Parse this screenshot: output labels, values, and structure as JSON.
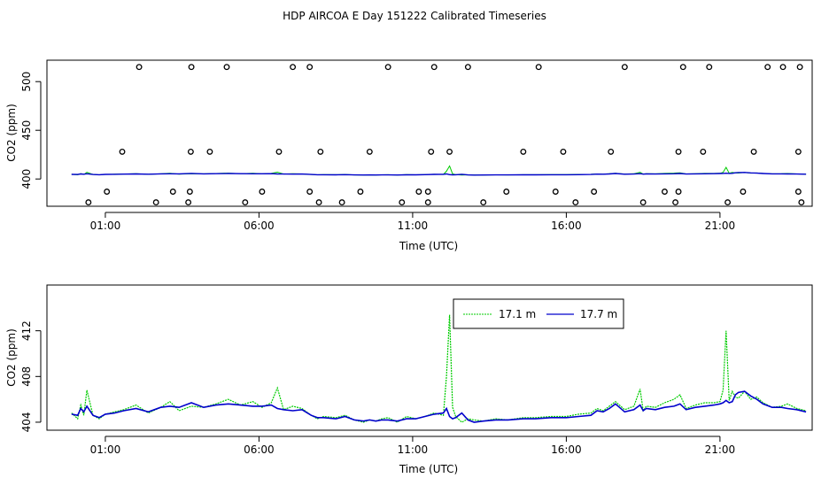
{
  "chart_data": [
    {
      "type": "scatter",
      "title": "HDP AIRCOA E  Day 151222  Calibrated Timeseries",
      "xlabel": "Time (UTC)",
      "ylabel": "CO2 (ppm)",
      "xlim": [
        -0.9,
        24.0
      ],
      "ylim": [
        372,
        522
      ],
      "x_ticks": [
        1,
        6,
        11,
        16,
        21
      ],
      "x_tick_labels": [
        "01:00",
        "06:00",
        "11:00",
        "16:00",
        "21:00"
      ],
      "y_ticks": [
        400,
        450,
        500
      ],
      "y_tick_labels": [
        "400",
        "450",
        "500"
      ],
      "grid": false,
      "colors": {
        "s17_1": "#00cc00",
        "s17_7": "#0000cc",
        "marker": "#000000"
      },
      "markers_x": [
        0.45,
        1.05,
        1.55,
        2.1,
        2.65,
        3.2,
        3.7,
        3.75,
        3.78,
        3.8,
        4.4,
        4.95,
        5.55,
        6.1,
        6.65,
        7.1,
        7.65,
        7.65,
        7.95,
        8.0,
        8.7,
        9.3,
        9.6,
        10.2,
        10.65,
        11.2,
        11.5,
        11.5,
        11.6,
        11.7,
        12.2,
        12.8,
        13.3,
        14.05,
        14.6,
        15.1,
        15.65,
        15.9,
        16.3,
        16.9,
        17.45,
        17.9,
        18.5,
        19.2,
        19.55,
        19.65,
        19.65,
        19.8,
        20.45,
        20.65,
        21.25,
        21.75,
        22.1,
        22.55,
        23.05,
        23.55,
        23.55,
        23.6,
        23.65
      ],
      "markers_y": [
        376,
        387,
        428,
        515,
        376,
        387,
        376,
        387,
        428,
        515,
        428,
        515,
        376,
        387,
        428,
        515,
        387,
        515,
        376,
        428,
        376,
        387,
        428,
        515,
        376,
        387,
        376,
        387,
        428,
        515,
        428,
        515,
        376,
        387,
        428,
        515,
        387,
        428,
        376,
        387,
        428,
        515,
        376,
        387,
        376,
        387,
        428,
        515,
        428,
        515,
        376,
        387,
        428,
        515,
        515,
        387,
        428,
        515,
        376
      ]
    },
    {
      "type": "line",
      "title": "",
      "xlabel": "Time (UTC)",
      "ylabel": "CO2 (ppm)",
      "xlim": [
        -0.9,
        24.0
      ],
      "ylim": [
        403.3,
        416.0
      ],
      "x_ticks": [
        1,
        6,
        11,
        16,
        21
      ],
      "x_tick_labels": [
        "01:00",
        "06:00",
        "11:00",
        "16:00",
        "21:00"
      ],
      "y_ticks": [
        404,
        408,
        412
      ],
      "y_tick_labels": [
        "404",
        "408",
        "412"
      ],
      "legend_position": "top-center",
      "grid": false,
      "x": [
        -0.1,
        0.1,
        0.2,
        0.3,
        0.4,
        0.6,
        0.8,
        1.0,
        1.3,
        1.6,
        2.0,
        2.4,
        2.8,
        3.1,
        3.4,
        3.8,
        4.2,
        4.6,
        5.0,
        5.4,
        5.8,
        6.1,
        6.4,
        6.6,
        6.8,
        7.1,
        7.4,
        7.7,
        7.9,
        8.1,
        8.5,
        8.8,
        9.1,
        9.4,
        9.6,
        9.8,
        10.0,
        10.2,
        10.5,
        10.8,
        11.1,
        11.4,
        11.7,
        12.0,
        12.1,
        12.2,
        12.3,
        12.4,
        12.6,
        12.8,
        13.0,
        13.3,
        13.7,
        14.1,
        14.6,
        15.0,
        15.5,
        16.0,
        16.4,
        16.8,
        17.0,
        17.2,
        17.4,
        17.6,
        17.9,
        18.2,
        18.4,
        18.5,
        18.6,
        18.9,
        19.2,
        19.5,
        19.7,
        19.9,
        20.2,
        20.5,
        20.8,
        21.0,
        21.1,
        21.2,
        21.3,
        21.4,
        21.5,
        21.6,
        21.8,
        22.0,
        22.2,
        22.4,
        22.7,
        23.0,
        23.2,
        23.5,
        23.8
      ],
      "series": [
        {
          "name": "17.1 m",
          "color": "#00cc00",
          "values": [
            404.8,
            404.3,
            405.5,
            404.6,
            406.8,
            404.6,
            404.3,
            404.7,
            404.9,
            405.1,
            405.5,
            404.8,
            405.3,
            405.8,
            405.0,
            405.4,
            405.3,
            405.6,
            406.0,
            405.5,
            405.8,
            405.3,
            405.7,
            407.0,
            405.1,
            405.4,
            405.2,
            404.6,
            404.3,
            404.5,
            404.4,
            404.6,
            404.2,
            404.0,
            404.2,
            404.1,
            404.3,
            404.4,
            404.0,
            404.5,
            404.3,
            404.5,
            404.8,
            404.6,
            408.0,
            413.4,
            405.3,
            404.5,
            404.0,
            404.3,
            404.2,
            404.1,
            404.3,
            404.2,
            404.4,
            404.4,
            404.5,
            404.5,
            404.7,
            404.8,
            405.2,
            405.0,
            405.4,
            405.8,
            405.1,
            405.4,
            406.9,
            405.0,
            405.4,
            405.3,
            405.7,
            406.0,
            406.4,
            405.2,
            405.5,
            405.7,
            405.7,
            405.8,
            406.8,
            412.0,
            405.9,
            406.7,
            406.2,
            406.1,
            406.7,
            406.0,
            406.2,
            405.7,
            405.3,
            405.4,
            405.6,
            405.2,
            405.0
          ]
        },
        {
          "name": "17.7 m",
          "color": "#0000cc",
          "values": [
            404.7,
            404.6,
            405.2,
            404.9,
            405.4,
            404.6,
            404.4,
            404.7,
            404.8,
            405.0,
            405.2,
            404.9,
            405.3,
            405.4,
            405.3,
            405.7,
            405.3,
            405.5,
            405.6,
            405.5,
            405.4,
            405.4,
            405.5,
            405.2,
            405.1,
            405.0,
            405.1,
            404.6,
            404.4,
            404.4,
            404.3,
            404.5,
            404.2,
            404.1,
            404.2,
            404.1,
            404.2,
            404.2,
            404.1,
            404.3,
            404.3,
            404.5,
            404.7,
            404.8,
            405.2,
            404.5,
            404.3,
            404.4,
            404.8,
            404.2,
            404.0,
            404.1,
            404.2,
            404.2,
            404.3,
            404.3,
            404.4,
            404.4,
            404.5,
            404.6,
            405.0,
            404.9,
            405.2,
            405.6,
            404.9,
            405.1,
            405.5,
            405.0,
            405.2,
            405.1,
            405.3,
            405.4,
            405.6,
            405.1,
            405.3,
            405.4,
            405.5,
            405.6,
            405.7,
            405.9,
            405.7,
            405.8,
            406.4,
            406.6,
            406.7,
            406.3,
            406.0,
            405.6,
            405.3,
            405.3,
            405.2,
            405.1,
            404.9
          ]
        }
      ]
    }
  ]
}
